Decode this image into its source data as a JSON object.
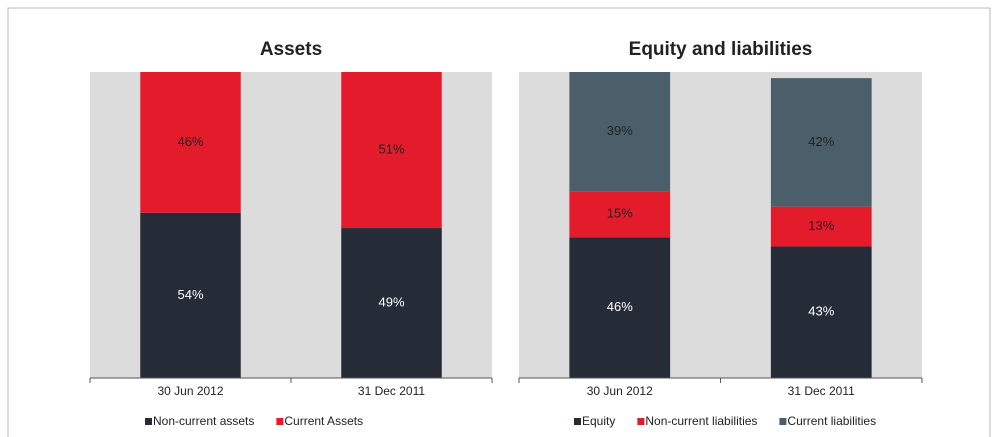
{
  "chart_data": [
    {
      "type": "bar",
      "stacked": true,
      "title": "Assets",
      "categories": [
        "30 Jun 2012",
        "31 Dec 2011"
      ],
      "series": [
        {
          "name": "Non-current assets",
          "color": "#262b38",
          "values": [
            54,
            49
          ],
          "value_labels": [
            "54%",
            "49%"
          ]
        },
        {
          "name": "Current Assets",
          "color": "#e31b2b",
          "values": [
            46,
            51
          ],
          "value_labels": [
            "46%",
            "51%"
          ]
        }
      ],
      "ylim": [
        0,
        100
      ],
      "background": "#dcdcdc"
    },
    {
      "type": "bar",
      "stacked": true,
      "title": "Equity and liabilities",
      "categories": [
        "30 Jun 2012",
        "31 Dec 2011"
      ],
      "series": [
        {
          "name": "Equity",
          "color": "#262b38",
          "values": [
            46,
            43
          ],
          "value_labels": [
            "46%",
            "43%"
          ]
        },
        {
          "name": "Non-current liabilities",
          "color": "#e31b2b",
          "values": [
            15,
            13
          ],
          "value_labels": [
            "15%",
            "13%"
          ]
        },
        {
          "name": "Current liabilities",
          "color": "#4a5f6a",
          "values": [
            39,
            42
          ],
          "value_labels": [
            "39%",
            "42%"
          ]
        }
      ],
      "ylim": [
        0,
        100
      ],
      "background": "#dcdcdc"
    }
  ]
}
